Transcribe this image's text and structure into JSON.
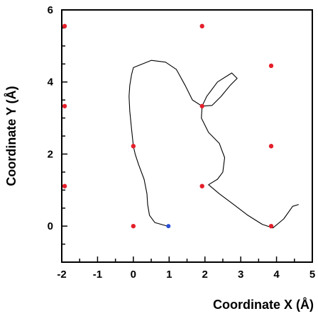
{
  "chart_data": {
    "type": "scatter",
    "title": "",
    "xlabel": "Coordinate X (Å)",
    "ylabel": "Coordinate Y (Å)",
    "xlim": [
      -2,
      5
    ],
    "ylim": [
      -1,
      6
    ],
    "xticks": [
      -2,
      -1,
      0,
      1,
      2,
      3,
      4,
      5
    ],
    "yticks": [
      0,
      2,
      4,
      6
    ],
    "grid": false,
    "colors": {
      "lattice": "#e41f2a",
      "trajectory": "#000000",
      "start": "#2a4fd6"
    },
    "series": [
      {
        "type": "scatter",
        "points": [
          [
            -1.92,
            5.55
          ],
          [
            1.92,
            5.55
          ],
          [
            3.85,
            4.45
          ],
          [
            -1.92,
            3.33
          ],
          [
            1.92,
            3.33
          ],
          [
            0.0,
            2.22
          ],
          [
            3.85,
            2.22
          ],
          [
            -1.92,
            1.11
          ],
          [
            1.92,
            1.11
          ],
          [
            0.0,
            0.0
          ],
          [
            3.85,
            0.0
          ]
        ]
      },
      {
        "type": "line",
        "points": [
          [
            0.95,
            0.0
          ],
          [
            0.6,
            0.1
          ],
          [
            0.45,
            0.3
          ],
          [
            0.4,
            0.6
          ],
          [
            0.38,
            0.9
          ],
          [
            0.3,
            1.3
          ],
          [
            0.15,
            1.7
          ],
          [
            0.05,
            2.0
          ],
          [
            0.0,
            2.22
          ],
          [
            -0.05,
            2.7
          ],
          [
            -0.1,
            3.2
          ],
          [
            -0.12,
            3.6
          ],
          [
            -0.1,
            3.9
          ],
          [
            -0.05,
            4.2
          ],
          [
            0.0,
            4.4
          ],
          [
            0.5,
            4.6
          ],
          [
            0.9,
            4.55
          ],
          [
            1.2,
            4.35
          ],
          [
            1.45,
            3.9
          ],
          [
            1.65,
            3.5
          ],
          [
            1.92,
            3.33
          ],
          [
            2.2,
            3.35
          ],
          [
            2.45,
            3.6
          ],
          [
            2.7,
            3.9
          ],
          [
            2.9,
            4.1
          ],
          [
            2.75,
            4.25
          ],
          [
            2.35,
            4.0
          ],
          [
            2.05,
            3.6
          ],
          [
            1.92,
            3.33
          ],
          [
            1.9,
            3.0
          ],
          [
            2.1,
            2.6
          ],
          [
            2.4,
            2.3
          ],
          [
            2.55,
            1.9
          ],
          [
            2.5,
            1.5
          ],
          [
            2.35,
            1.3
          ],
          [
            2.1,
            1.15
          ],
          [
            2.4,
            0.9
          ],
          [
            2.8,
            0.6
          ],
          [
            3.2,
            0.3
          ],
          [
            3.6,
            0.05
          ],
          [
            3.9,
            -0.05
          ],
          [
            4.2,
            0.2
          ],
          [
            4.45,
            0.55
          ],
          [
            4.62,
            0.6
          ]
        ]
      },
      {
        "type": "scatter",
        "points": [
          [
            0.98,
            0.0
          ]
        ]
      }
    ]
  }
}
